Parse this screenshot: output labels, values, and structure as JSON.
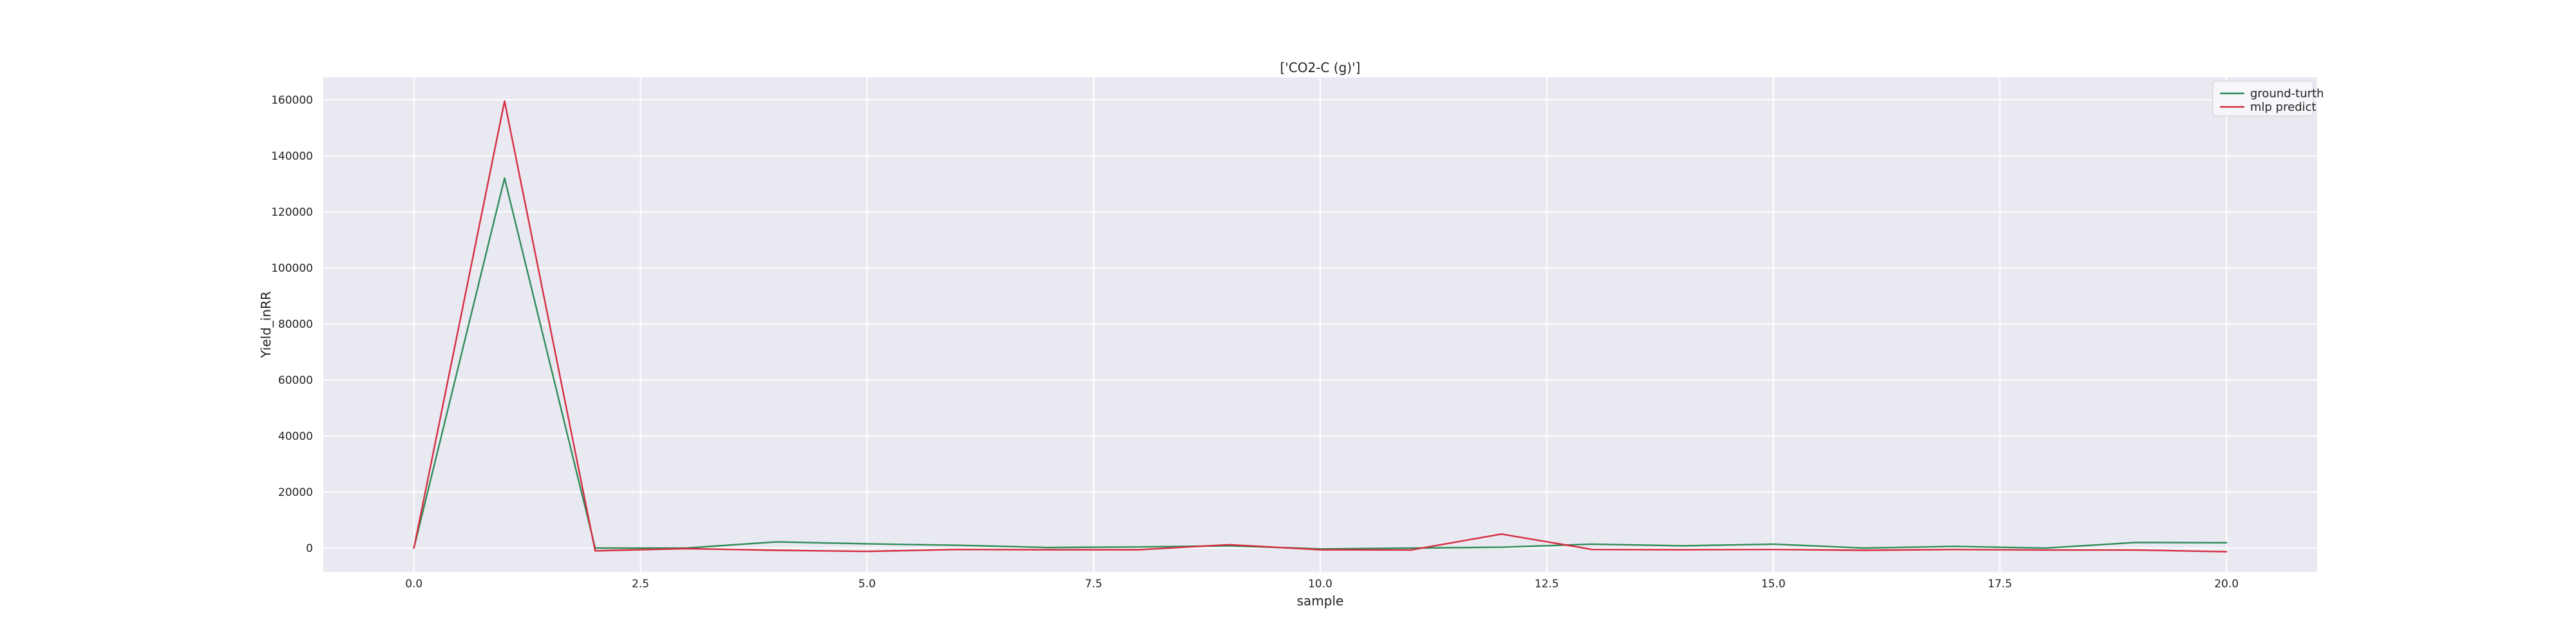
{
  "chart_data": {
    "type": "line",
    "title": "['CO2-C (g)']",
    "xlabel": "sample",
    "ylabel": "Yield_inRR",
    "xlim": [
      -1,
      21
    ],
    "ylim": [
      -8500,
      168000
    ],
    "xticks": [
      0,
      2.5,
      5,
      7.5,
      10,
      12.5,
      15,
      17.5,
      20
    ],
    "xtick_labels": [
      "0.0",
      "2.5",
      "5.0",
      "7.5",
      "10.0",
      "12.5",
      "15.0",
      "17.5",
      "20.0"
    ],
    "yticks": [
      0,
      20000,
      40000,
      60000,
      80000,
      100000,
      120000,
      140000,
      160000
    ],
    "ytick_labels": [
      "0",
      "20000",
      "40000",
      "60000",
      "80000",
      "100000",
      "120000",
      "140000",
      "160000"
    ],
    "grid": true,
    "legend": "top-right",
    "x": [
      0,
      1,
      2,
      3,
      4,
      5,
      6,
      7,
      8,
      9,
      10,
      11,
      12,
      13,
      14,
      15,
      16,
      17,
      18,
      19,
      20
    ],
    "series": [
      {
        "name": "ground-turth",
        "color": "#2e8b57",
        "values": [
          0,
          132000,
          0,
          0,
          2200,
          1500,
          1000,
          200,
          400,
          800,
          -300,
          0,
          300,
          1400,
          800,
          1400,
          0,
          600,
          0,
          2000,
          1900
        ]
      },
      {
        "name": "mlp predict",
        "color": "#d62c3f",
        "values": [
          0,
          159500,
          -1000,
          -200,
          -800,
          -1200,
          -500,
          -600,
          -600,
          1200,
          -600,
          -700,
          5000,
          -500,
          -600,
          -500,
          -800,
          -500,
          -700,
          -700,
          -1300
        ]
      }
    ]
  }
}
